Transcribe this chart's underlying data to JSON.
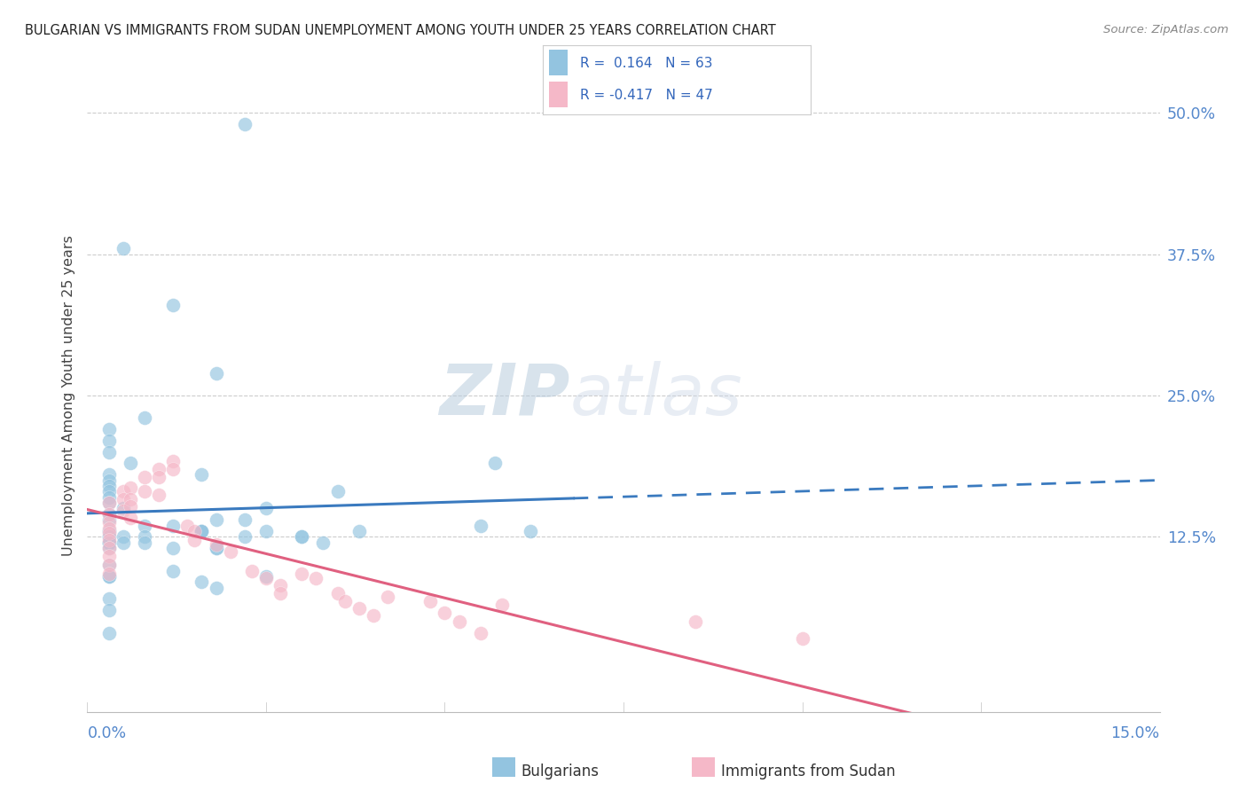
{
  "title": "BULGARIAN VS IMMIGRANTS FROM SUDAN UNEMPLOYMENT AMONG YOUTH UNDER 25 YEARS CORRELATION CHART",
  "source": "Source: ZipAtlas.com",
  "ylabel": "Unemployment Among Youth under 25 years",
  "x_min": 0.0,
  "x_max": 0.15,
  "y_min": -0.03,
  "y_max": 0.53,
  "color_blue": "#93c4e0",
  "color_pink": "#f5b8c8",
  "color_blue_line": "#3a7abf",
  "color_pink_line": "#e06080",
  "watermark_zip": "ZIP",
  "watermark_atlas": "atlas",
  "blue_scatter_x": [
    0.022,
    0.005,
    0.012,
    0.018,
    0.008,
    0.003,
    0.003,
    0.003,
    0.006,
    0.003,
    0.003,
    0.003,
    0.003,
    0.003,
    0.003,
    0.005,
    0.003,
    0.003,
    0.008,
    0.012,
    0.003,
    0.003,
    0.003,
    0.005,
    0.008,
    0.016,
    0.003,
    0.003,
    0.003,
    0.005,
    0.008,
    0.012,
    0.018,
    0.016,
    0.022,
    0.025,
    0.003,
    0.016,
    0.035,
    0.055,
    0.062,
    0.057,
    0.003,
    0.022,
    0.012,
    0.003,
    0.016,
    0.03,
    0.038,
    0.018,
    0.003,
    0.018,
    0.025,
    0.018,
    0.003,
    0.003,
    0.03,
    0.016,
    0.033,
    0.003,
    0.003,
    0.003,
    0.025
  ],
  "blue_scatter_y": [
    0.49,
    0.38,
    0.33,
    0.27,
    0.23,
    0.22,
    0.21,
    0.2,
    0.19,
    0.18,
    0.175,
    0.17,
    0.165,
    0.16,
    0.155,
    0.15,
    0.145,
    0.14,
    0.135,
    0.135,
    0.13,
    0.13,
    0.125,
    0.125,
    0.125,
    0.13,
    0.125,
    0.12,
    0.12,
    0.12,
    0.12,
    0.115,
    0.115,
    0.13,
    0.14,
    0.15,
    0.1,
    0.18,
    0.165,
    0.135,
    0.13,
    0.19,
    0.09,
    0.125,
    0.095,
    0.09,
    0.13,
    0.125,
    0.13,
    0.14,
    0.07,
    0.08,
    0.09,
    0.115,
    0.06,
    0.04,
    0.125,
    0.085,
    0.12,
    0.12,
    0.12,
    0.115,
    0.13
  ],
  "pink_scatter_x": [
    0.003,
    0.003,
    0.003,
    0.003,
    0.003,
    0.003,
    0.003,
    0.003,
    0.003,
    0.003,
    0.005,
    0.005,
    0.005,
    0.006,
    0.006,
    0.006,
    0.006,
    0.008,
    0.008,
    0.01,
    0.01,
    0.01,
    0.012,
    0.012,
    0.014,
    0.015,
    0.015,
    0.018,
    0.02,
    0.023,
    0.025,
    0.027,
    0.027,
    0.03,
    0.032,
    0.035,
    0.036,
    0.038,
    0.04,
    0.042,
    0.048,
    0.05,
    0.052,
    0.055,
    0.058,
    0.085,
    0.1
  ],
  "pink_scatter_y": [
    0.155,
    0.145,
    0.138,
    0.132,
    0.128,
    0.122,
    0.115,
    0.108,
    0.1,
    0.092,
    0.165,
    0.158,
    0.148,
    0.168,
    0.158,
    0.152,
    0.142,
    0.178,
    0.165,
    0.185,
    0.178,
    0.162,
    0.192,
    0.185,
    0.135,
    0.13,
    0.122,
    0.118,
    0.112,
    0.095,
    0.088,
    0.082,
    0.075,
    0.092,
    0.088,
    0.075,
    0.068,
    0.062,
    0.055,
    0.072,
    0.068,
    0.058,
    0.05,
    0.04,
    0.065,
    0.05,
    0.035
  ],
  "bg_color": "#ffffff",
  "grid_color": "#cccccc",
  "title_color": "#222222",
  "tick_color": "#5588cc"
}
